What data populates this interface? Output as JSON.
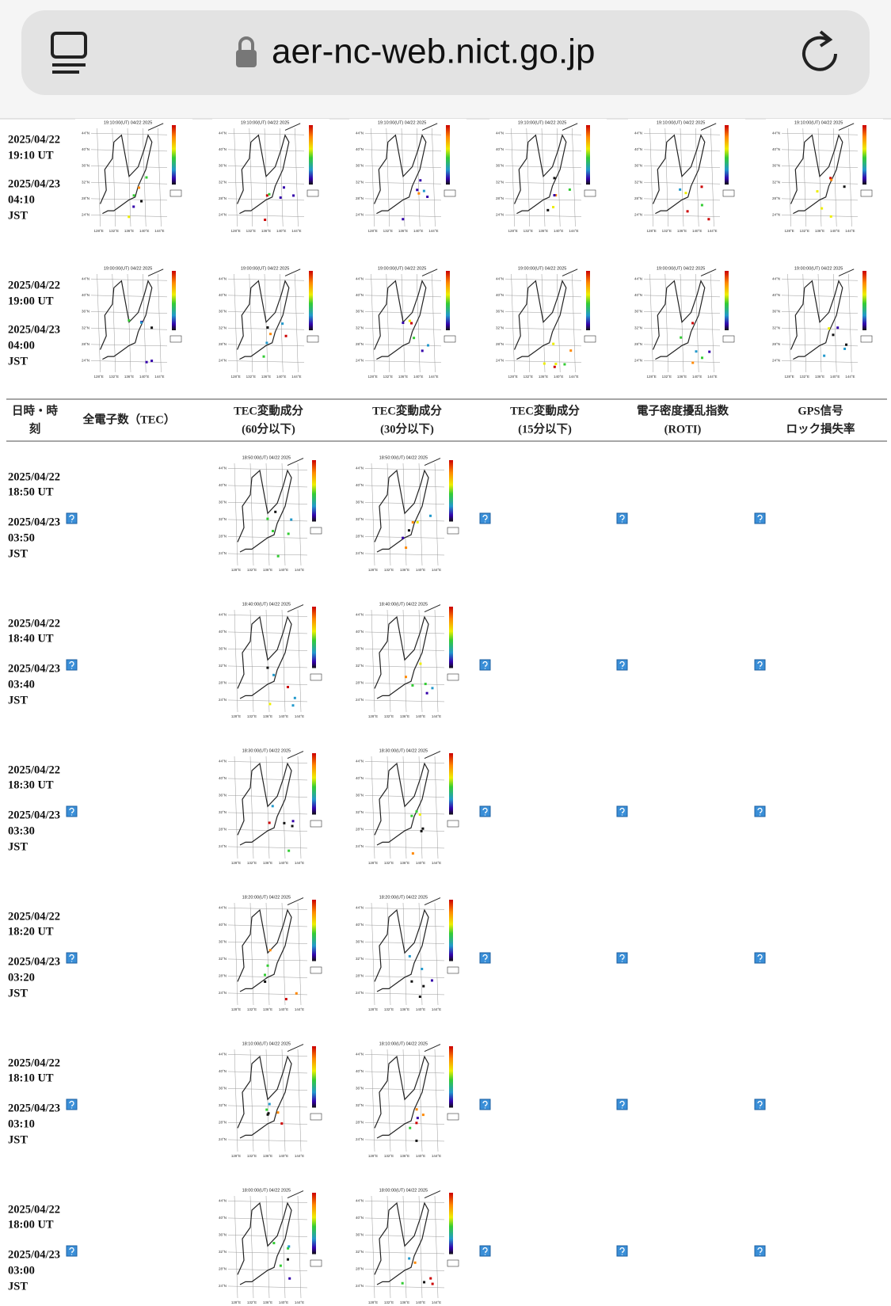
{
  "browser": {
    "url": "aer-nc-web.nict.go.jp"
  },
  "map_axes": {
    "lat": [
      "44°N",
      "40°N",
      "36°N",
      "32°N",
      "28°N",
      "24°N"
    ],
    "lon": [
      "128°E",
      "132°E",
      "136°E",
      "140°E",
      "144°E"
    ]
  },
  "top_rows": [
    {
      "date_lines": [
        "2025/04/22",
        "19:10 UT",
        "2025/04/23",
        "04:10",
        "JST"
      ],
      "map_title": "19:10:00(UT) 04/22 2025"
    },
    {
      "date_lines": [
        "2025/04/22",
        "19:00 UT",
        "2025/04/23",
        "04:00",
        "JST"
      ],
      "map_title": "19:00:00(UT) 04/22 2025"
    }
  ],
  "table": {
    "headers": [
      [
        "日時・時",
        "刻"
      ],
      [
        "全電子数（TEC）"
      ],
      [
        "TEC変動成分",
        "(60分以下)"
      ],
      [
        "TEC変動成分",
        "(30分以下)"
      ],
      [
        "TEC変動成分",
        "(15分以下)"
      ],
      [
        "電子密度擾乱指数",
        "(ROTI)"
      ],
      [
        "GPS信号",
        "ロック損失率"
      ]
    ],
    "rows": [
      {
        "date_lines": [
          "2025/04/22",
          "18:50 UT",
          "2025/04/23",
          "03:50",
          "JST"
        ],
        "map_title": "18:50:00(UT) 04/22 2025"
      },
      {
        "date_lines": [
          "2025/04/22",
          "18:40 UT",
          "2025/04/23",
          "03:40",
          "JST"
        ],
        "map_title": "18:40:00(UT) 04/22 2025"
      },
      {
        "date_lines": [
          "2025/04/22",
          "18:30 UT",
          "2025/04/23",
          "03:30",
          "JST"
        ],
        "map_title": "18:30:00(UT) 04/22 2025"
      },
      {
        "date_lines": [
          "2025/04/22",
          "18:20 UT",
          "2025/04/23",
          "03:20",
          "JST"
        ],
        "map_title": "18:20:00(UT) 04/22 2025"
      },
      {
        "date_lines": [
          "2025/04/22",
          "18:10 UT",
          "2025/04/23",
          "03:10",
          "JST"
        ],
        "map_title": "18:10:00(UT) 04/22 2025"
      },
      {
        "date_lines": [
          "2025/04/22",
          "18:00 UT",
          "2025/04/23",
          "03:00",
          "JST"
        ],
        "map_title": "18:00:00(UT) 04/22 2025"
      }
    ]
  }
}
